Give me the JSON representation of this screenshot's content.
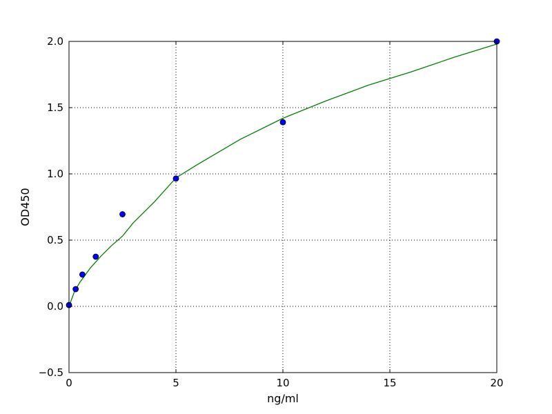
{
  "chart_data": {
    "type": "scatter",
    "title": "",
    "xlabel": "ng/ml",
    "ylabel": "OD450",
    "xlim": [
      0,
      20
    ],
    "ylim": [
      -0.5,
      2.0
    ],
    "xticks": [
      0,
      5,
      10,
      15,
      20
    ],
    "xtick_labels": [
      "0",
      "5",
      "10",
      "15",
      "20"
    ],
    "yticks": [
      -0.5,
      0.0,
      0.5,
      1.0,
      1.5,
      2.0
    ],
    "ytick_labels": [
      "−0.5",
      "0.0",
      "0.5",
      "1.0",
      "1.5",
      "2.0"
    ],
    "grid": true,
    "series": [
      {
        "type": "scatter",
        "color": "#0000ff",
        "points": [
          {
            "x": 0,
            "y": 0.01
          },
          {
            "x": 0.3125,
            "y": 0.13
          },
          {
            "x": 0.625,
            "y": 0.24
          },
          {
            "x": 1.25,
            "y": 0.375
          },
          {
            "x": 2.5,
            "y": 0.695
          },
          {
            "x": 5,
            "y": 0.965
          },
          {
            "x": 10,
            "y": 1.39
          },
          {
            "x": 20,
            "y": 2.0
          }
        ]
      },
      {
        "type": "line",
        "color": "#008000",
        "points": [
          {
            "x": 0,
            "y": 0.0
          },
          {
            "x": 0.25,
            "y": 0.11
          },
          {
            "x": 0.5,
            "y": 0.18
          },
          {
            "x": 1,
            "y": 0.29
          },
          {
            "x": 1.5,
            "y": 0.38
          },
          {
            "x": 2,
            "y": 0.46
          },
          {
            "x": 2.5,
            "y": 0.53
          },
          {
            "x": 3,
            "y": 0.63
          },
          {
            "x": 4,
            "y": 0.79
          },
          {
            "x": 5,
            "y": 0.97
          },
          {
            "x": 6,
            "y": 1.07
          },
          {
            "x": 8,
            "y": 1.26
          },
          {
            "x": 10,
            "y": 1.42
          },
          {
            "x": 12,
            "y": 1.55
          },
          {
            "x": 14,
            "y": 1.67
          },
          {
            "x": 16,
            "y": 1.77
          },
          {
            "x": 18,
            "y": 1.88
          },
          {
            "x": 20,
            "y": 1.98
          }
        ]
      }
    ]
  }
}
